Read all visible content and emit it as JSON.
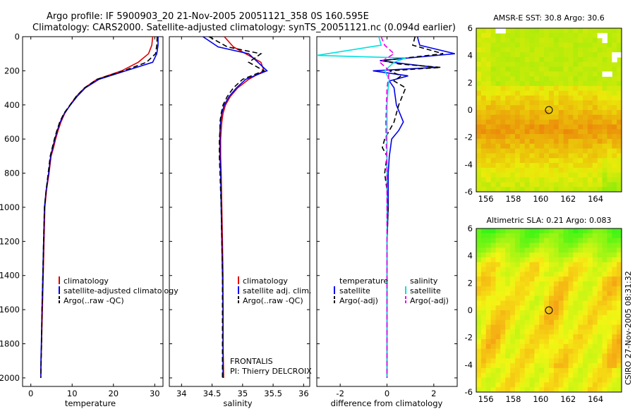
{
  "header": {
    "title_line1": "Argo profile: IF 5900903_20 21-Nov-2005 20051121_358 0S 160.595E",
    "title_line2": "Climatology: CARS2000. Satellite-adjusted climatology: synTS_20051121.nc (0.094d earlier)"
  },
  "credit": "CSIRO 27-Nov-2005 08:31:32",
  "colors": {
    "climatology": "#dd0000",
    "satellite": "#0000ee",
    "argo": "#000000",
    "salinity_satellite": "#00e0e0",
    "salinity_argo": "#ee00ee"
  },
  "chart_data": [
    {
      "id": "temperature",
      "type": "line",
      "xlabel": "temperature",
      "xlim": [
        -2,
        32
      ],
      "ylim": [
        2050,
        0
      ],
      "xticks": [
        0,
        10,
        20,
        30
      ],
      "yticks": [
        0,
        200,
        400,
        600,
        800,
        1000,
        1200,
        1400,
        1600,
        1800,
        2000
      ],
      "legend": [
        "climatology",
        "satellite-adjusted climatology",
        "Argo(..raw -QC)"
      ],
      "series": [
        {
          "name": "climatology",
          "color": "#dd0000",
          "dash": "",
          "x": [
            29.5,
            29.3,
            28.5,
            26,
            22,
            16,
            13,
            11,
            9.5,
            8.2,
            7.3,
            6.6,
            6,
            5.5,
            4.9,
            4.4,
            3.8,
            3.4,
            3.2,
            3.0,
            2.8,
            2.6,
            2.5,
            2.4
          ],
          "y": [
            0,
            50,
            100,
            150,
            200,
            250,
            300,
            350,
            400,
            450,
            500,
            550,
            600,
            650,
            700,
            800,
            900,
            1000,
            1200,
            1400,
            1600,
            1800,
            1900,
            2000
          ]
        },
        {
          "name": "satellite-adjusted climatology",
          "color": "#0000ee",
          "dash": "",
          "x": [
            30.8,
            30.8,
            30.5,
            29.5,
            23,
            16.5,
            13.2,
            11.2,
            9.6,
            8.1,
            7.1,
            6.4,
            5.8,
            5.3,
            4.8,
            4.3,
            3.7,
            3.3,
            3.1,
            2.9,
            2.7,
            2.55,
            2.45,
            2.4
          ],
          "y": [
            0,
            50,
            100,
            150,
            200,
            250,
            300,
            350,
            400,
            450,
            500,
            550,
            600,
            650,
            700,
            800,
            900,
            1000,
            1200,
            1400,
            1600,
            1800,
            1900,
            2000
          ]
        },
        {
          "name": "Argo(..raw -QC)",
          "color": "#000000",
          "dash": "7,4",
          "x": [
            30.6,
            30.5,
            30.2,
            28,
            22.5,
            16,
            13,
            11,
            9.5,
            8,
            7,
            6.3,
            5.7,
            5.2,
            4.7,
            4.2,
            3.7,
            3.3,
            3.1,
            2.9,
            2.7,
            2.6,
            2.5,
            2.4
          ],
          "y": [
            0,
            50,
            100,
            150,
            200,
            250,
            300,
            350,
            400,
            450,
            500,
            550,
            600,
            650,
            700,
            800,
            900,
            1000,
            1200,
            1400,
            1600,
            1800,
            1900,
            2000
          ]
        }
      ]
    },
    {
      "id": "salinity",
      "type": "line",
      "xlabel": "salinity",
      "xlim": [
        33.8,
        36.1
      ],
      "ylim": [
        2050,
        0
      ],
      "xticks": [
        34,
        34.5,
        35,
        35.5,
        36
      ],
      "legend": [
        "climatology",
        "satellite adj. clim.",
        "Argo(..raw -QC)"
      ],
      "annotation": [
        "FRONTALIS",
        "PI: Thierry DELCROIX"
      ],
      "series": [
        {
          "name": "climatology",
          "color": "#dd0000",
          "dash": "",
          "x": [
            34.7,
            34.85,
            35.05,
            35.3,
            35.35,
            35.1,
            34.92,
            34.8,
            34.72,
            34.68,
            34.66,
            34.65,
            34.64,
            34.64,
            34.65,
            34.66,
            34.67,
            34.68,
            34.68,
            34.68,
            34.69
          ],
          "y": [
            0,
            60,
            100,
            150,
            200,
            250,
            300,
            350,
            400,
            450,
            500,
            550,
            600,
            700,
            800,
            1000,
            1200,
            1400,
            1600,
            1800,
            2000
          ]
        },
        {
          "name": "satellite adj. clim.",
          "color": "#0000ee",
          "dash": "",
          "x": [
            34.35,
            34.6,
            35.1,
            35.25,
            35.4,
            35.05,
            34.9,
            34.78,
            34.7,
            34.66,
            34.64,
            34.63,
            34.63,
            34.63,
            34.64,
            34.65,
            34.66,
            34.67,
            34.68,
            34.68,
            34.68
          ],
          "y": [
            0,
            60,
            100,
            150,
            200,
            250,
            300,
            350,
            400,
            450,
            500,
            550,
            600,
            700,
            800,
            1000,
            1200,
            1400,
            1600,
            1800,
            2000
          ]
        },
        {
          "name": "Argo(..raw -QC)",
          "color": "#000000",
          "dash": "7,4",
          "x": [
            34.45,
            34.75,
            35.3,
            35.1,
            35.35,
            35.0,
            34.85,
            34.75,
            34.68,
            34.65,
            34.63,
            34.63,
            34.62,
            34.62,
            34.63,
            34.65,
            34.66,
            34.67,
            34.67,
            34.67,
            34.67
          ],
          "y": [
            0,
            60,
            100,
            150,
            200,
            250,
            300,
            350,
            400,
            450,
            500,
            550,
            600,
            700,
            800,
            1000,
            1200,
            1400,
            1600,
            1800,
            2000
          ]
        }
      ]
    },
    {
      "id": "difference",
      "type": "line",
      "xlabel": "difference from climatology",
      "xlim": [
        -3,
        3
      ],
      "ylim": [
        2050,
        0
      ],
      "xticks": [
        -2,
        0,
        2
      ],
      "legend_groups": [
        {
          "heading": "temperature",
          "items": [
            "satellite",
            "Argo(-adj)"
          ]
        },
        {
          "heading": "salinity",
          "items": [
            "satellite",
            "Argo(-adj)"
          ]
        }
      ],
      "series": [
        {
          "name": "temperature satellite",
          "color": "#0000ee",
          "dash": "",
          "x": [
            1.3,
            1.4,
            2.9,
            -0.3,
            0.8,
            2.1,
            -0.6,
            0.9,
            0.1,
            0.3,
            0.4,
            0.7,
            0.5,
            0.2,
            0.15,
            0.1,
            0.05,
            0.05,
            0.0,
            0.0,
            0.0,
            0.0
          ],
          "y": [
            0,
            50,
            100,
            140,
            160,
            180,
            200,
            230,
            260,
            300,
            400,
            500,
            550,
            600,
            650,
            700,
            800,
            1000,
            1200,
            1400,
            1700,
            2000
          ]
        },
        {
          "name": "temperature Argo(-adj)",
          "color": "#000000",
          "dash": "7,4",
          "x": [
            1.2,
            1.1,
            2.4,
            -0.2,
            0.5,
            2.3,
            0.1,
            0.6,
            0.3,
            0.8,
            0.5,
            0.3,
            -0.1,
            -0.2,
            0.0,
            -0.1,
            0.0,
            0.05,
            0.0,
            0.0,
            0.0,
            0.0
          ],
          "y": [
            0,
            50,
            100,
            140,
            160,
            180,
            200,
            230,
            260,
            300,
            400,
            500,
            600,
            650,
            700,
            800,
            900,
            1000,
            1200,
            1400,
            1700,
            2000
          ]
        },
        {
          "name": "salinity satellite",
          "color": "#00e0e0",
          "dash": "",
          "x": [
            -0.35,
            -0.25,
            -3,
            0.8,
            0.3,
            -0.1,
            0.1,
            0.05,
            0.0,
            0.0,
            0.0,
            0.0,
            0.0,
            0.0
          ],
          "y": [
            0,
            50,
            110,
            125,
            150,
            200,
            250,
            300,
            400,
            600,
            800,
            1200,
            1600,
            2000
          ]
        },
        {
          "name": "salinity Argo(-adj)",
          "color": "#ee00ee",
          "dash": "7,4",
          "x": [
            -0.25,
            -0.1,
            0.3,
            -0.3,
            0.1,
            0.0,
            -0.05,
            0.0,
            0.0,
            0.0
          ],
          "y": [
            0,
            50,
            100,
            150,
            200,
            300,
            500,
            800,
            1200,
            2000
          ]
        }
      ]
    },
    {
      "id": "sst-map",
      "type": "heatmap",
      "title": "AMSR-E SST: 30.8 Argo: 30.6",
      "xlim": [
        155.3,
        165.9
      ],
      "ylim": [
        -6,
        6
      ],
      "xticks": [
        156,
        158,
        160,
        162,
        164
      ],
      "yticks": [
        6,
        4,
        2,
        0,
        -2,
        -4,
        -6
      ],
      "marker": {
        "lon": 160.6,
        "lat": 0
      }
    },
    {
      "id": "sla-map",
      "type": "heatmap",
      "title": "Altimetric SLA: 0.21 Argo: 0.083",
      "xlim": [
        155.3,
        165.9
      ],
      "ylim": [
        -6,
        6
      ],
      "xticks": [
        156,
        158,
        160,
        162,
        164
      ],
      "yticks": [
        6,
        4,
        2,
        0,
        -2,
        -4,
        -6
      ],
      "marker": {
        "lon": 160.6,
        "lat": 0
      }
    }
  ]
}
